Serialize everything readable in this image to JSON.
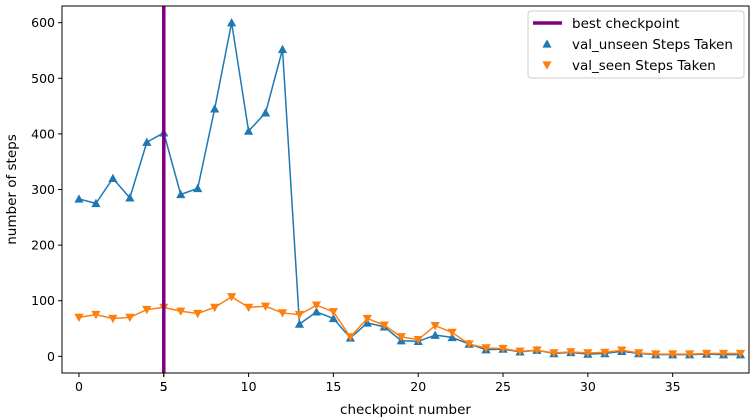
{
  "chart_data": {
    "type": "line",
    "title": "",
    "xlabel": "checkpoint number",
    "ylabel": "number of steps",
    "xlim": [
      -1,
      39.5
    ],
    "ylim": [
      -30,
      630
    ],
    "xticks": [
      0,
      5,
      10,
      15,
      20,
      25,
      30,
      35
    ],
    "yticks": [
      0,
      100,
      200,
      300,
      400,
      500,
      600
    ],
    "extra_xtick": 5,
    "grid": false,
    "legend_position": "top-right",
    "best_checkpoint": {
      "label": "best checkpoint",
      "x": 5,
      "color": "#800080"
    },
    "series": [
      {
        "name": "val_unseen Steps Taken",
        "marker": "triangle-up",
        "color": "#1f77b4",
        "x": [
          0,
          1,
          2,
          3,
          4,
          5,
          6,
          7,
          8,
          9,
          10,
          11,
          12,
          13,
          14,
          15,
          16,
          17,
          18,
          19,
          20,
          21,
          22,
          23,
          24,
          25,
          26,
          27,
          28,
          29,
          30,
          31,
          32,
          33,
          34,
          35,
          36,
          37,
          38,
          39
        ],
        "y": [
          283,
          275,
          320,
          285,
          385,
          402,
          291,
          302,
          445,
          600,
          405,
          438,
          552,
          58,
          80,
          68,
          33,
          60,
          53,
          28,
          27,
          38,
          34,
          22,
          12,
          13,
          8,
          11,
          5,
          7,
          4,
          5,
          9,
          5,
          3,
          3,
          3,
          4,
          3,
          3
        ]
      },
      {
        "name": "val_seen Steps Taken",
        "marker": "triangle-down",
        "color": "#ff7f0e",
        "x": [
          0,
          1,
          2,
          3,
          4,
          5,
          6,
          7,
          8,
          9,
          10,
          11,
          12,
          13,
          14,
          15,
          16,
          17,
          18,
          19,
          20,
          21,
          22,
          23,
          24,
          25,
          26,
          27,
          28,
          29,
          30,
          31,
          32,
          33,
          34,
          35,
          36,
          37,
          38,
          39
        ],
        "y": [
          70,
          75,
          68,
          70,
          84,
          88,
          81,
          77,
          88,
          107,
          88,
          90,
          78,
          75,
          92,
          80,
          35,
          68,
          56,
          35,
          30,
          55,
          43,
          22,
          15,
          14,
          9,
          11,
          6,
          8,
          6,
          7,
          11,
          6,
          4,
          4,
          4,
          5,
          5,
          5
        ]
      }
    ]
  }
}
